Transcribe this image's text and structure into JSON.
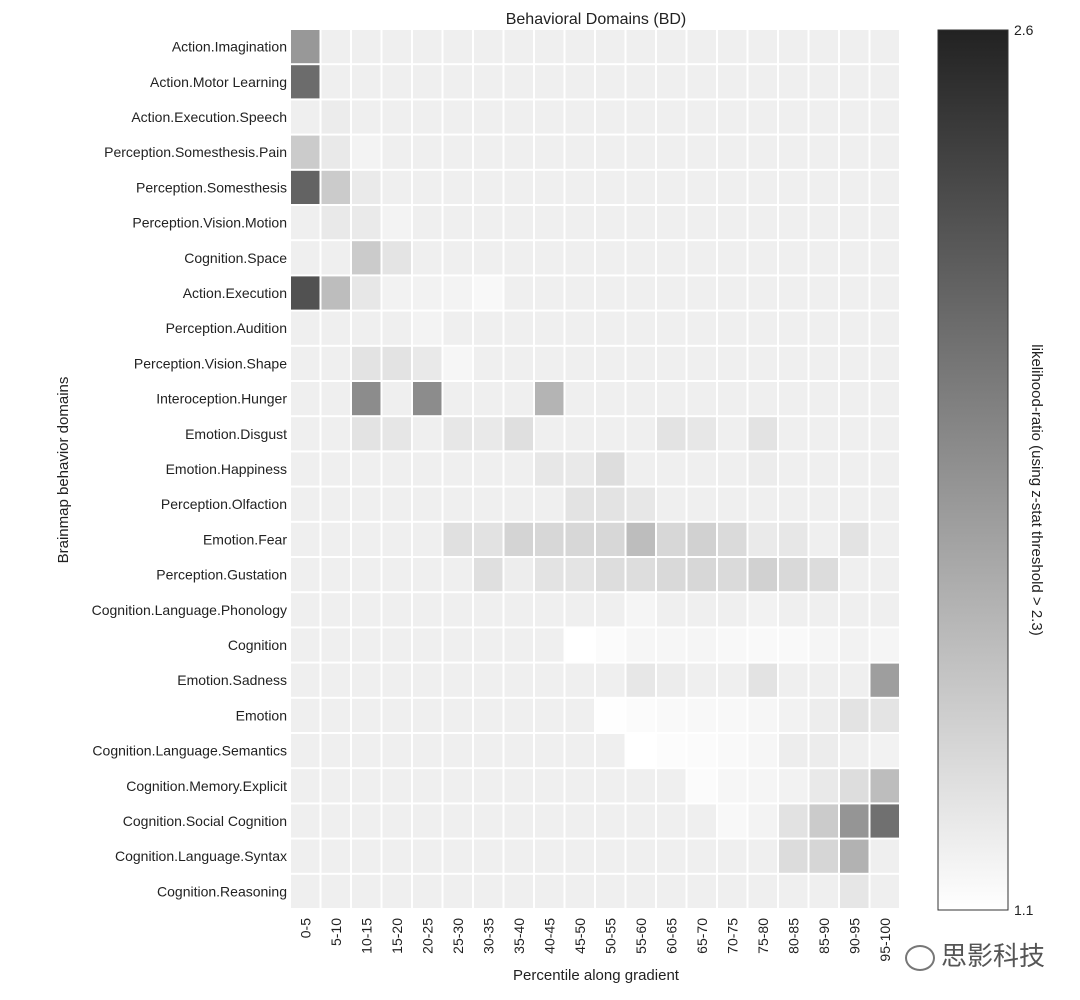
{
  "chart_data": {
    "type": "heatmap",
    "title": "Behavioral Domains (BD)",
    "xlabel": "Percentile along gradient",
    "ylabel": "Brainmap behavior domains",
    "x_categories": [
      "0-5",
      "5-10",
      "10-15",
      "15-20",
      "20-25",
      "25-30",
      "30-35",
      "35-40",
      "40-45",
      "45-50",
      "50-55",
      "55-60",
      "60-65",
      "65-70",
      "70-75",
      "75-80",
      "80-85",
      "85-90",
      "90-95",
      "95-100"
    ],
    "y_categories": [
      "Action.Imagination",
      "Action.Motor Learning",
      "Action.Execution.Speech",
      "Perception.Somesthesis.Pain",
      "Perception.Somesthesis",
      "Perception.Vision.Motion",
      "Cognition.Space",
      "Action.Execution",
      "Perception.Audition",
      "Perception.Vision.Shape",
      "Interoception.Hunger",
      "Emotion.Disgust",
      "Emotion.Happiness",
      "Perception.Olfaction",
      "Emotion.Fear",
      "Perception.Gustation",
      "Cognition.Language.Phonology",
      "Cognition",
      "Emotion.Sadness",
      "Emotion",
      "Cognition.Language.Semantics",
      "Cognition.Memory.Explicit",
      "Cognition.Social Cognition",
      "Cognition.Language.Syntax",
      "Cognition.Reasoning"
    ],
    "baseline_value": 1.21,
    "values": [
      [
        1.8,
        1.21,
        1.21,
        1.21,
        1.21,
        1.21,
        1.21,
        1.21,
        1.21,
        1.21,
        1.21,
        1.21,
        1.21,
        1.21,
        1.21,
        1.21,
        1.21,
        1.21,
        1.21,
        1.21
      ],
      [
        2.1,
        1.21,
        1.21,
        1.21,
        1.21,
        1.21,
        1.21,
        1.21,
        1.21,
        1.21,
        1.21,
        1.21,
        1.21,
        1.21,
        1.21,
        1.21,
        1.21,
        1.21,
        1.21,
        1.21
      ],
      [
        1.21,
        1.23,
        1.21,
        1.21,
        1.21,
        1.21,
        1.21,
        1.21,
        1.21,
        1.21,
        1.21,
        1.21,
        1.21,
        1.21,
        1.21,
        1.21,
        1.21,
        1.21,
        1.21,
        1.21
      ],
      [
        1.45,
        1.25,
        1.18,
        1.21,
        1.21,
        1.21,
        1.21,
        1.21,
        1.21,
        1.21,
        1.21,
        1.21,
        1.21,
        1.21,
        1.21,
        1.21,
        1.21,
        1.21,
        1.21,
        1.21
      ],
      [
        2.16,
        1.45,
        1.24,
        1.21,
        1.21,
        1.21,
        1.21,
        1.21,
        1.21,
        1.21,
        1.21,
        1.21,
        1.21,
        1.21,
        1.21,
        1.21,
        1.21,
        1.21,
        1.21,
        1.21
      ],
      [
        1.21,
        1.25,
        1.24,
        1.18,
        1.21,
        1.21,
        1.21,
        1.21,
        1.21,
        1.21,
        1.21,
        1.21,
        1.21,
        1.21,
        1.21,
        1.21,
        1.21,
        1.21,
        1.21,
        1.21
      ],
      [
        1.21,
        1.21,
        1.45,
        1.28,
        1.21,
        1.21,
        1.21,
        1.21,
        1.21,
        1.21,
        1.21,
        1.21,
        1.21,
        1.21,
        1.21,
        1.21,
        1.21,
        1.21,
        1.21,
        1.21
      ],
      [
        2.28,
        1.55,
        1.26,
        1.19,
        1.19,
        1.18,
        1.15,
        1.21,
        1.21,
        1.21,
        1.21,
        1.21,
        1.21,
        1.21,
        1.21,
        1.21,
        1.21,
        1.21,
        1.21,
        1.21
      ],
      [
        1.21,
        1.21,
        1.21,
        1.21,
        1.18,
        1.21,
        1.21,
        1.21,
        1.21,
        1.21,
        1.21,
        1.21,
        1.21,
        1.21,
        1.21,
        1.21,
        1.21,
        1.21,
        1.21,
        1.21
      ],
      [
        1.21,
        1.21,
        1.29,
        1.29,
        1.25,
        1.16,
        1.21,
        1.21,
        1.21,
        1.21,
        1.21,
        1.21,
        1.21,
        1.21,
        1.21,
        1.21,
        1.21,
        1.21,
        1.21,
        1.21
      ],
      [
        1.21,
        1.21,
        1.88,
        1.21,
        1.88,
        1.21,
        1.21,
        1.21,
        1.61,
        1.21,
        1.21,
        1.21,
        1.21,
        1.21,
        1.21,
        1.21,
        1.21,
        1.21,
        1.21,
        1.21
      ],
      [
        1.21,
        1.21,
        1.29,
        1.27,
        1.21,
        1.26,
        1.25,
        1.32,
        1.21,
        1.21,
        1.21,
        1.21,
        1.29,
        1.26,
        1.21,
        1.29,
        1.21,
        1.21,
        1.21,
        1.21
      ],
      [
        1.21,
        1.21,
        1.21,
        1.21,
        1.21,
        1.21,
        1.21,
        1.21,
        1.26,
        1.25,
        1.33,
        1.21,
        1.21,
        1.21,
        1.21,
        1.23,
        1.21,
        1.21,
        1.21,
        1.21
      ],
      [
        1.21,
        1.21,
        1.21,
        1.21,
        1.21,
        1.21,
        1.21,
        1.21,
        1.21,
        1.29,
        1.29,
        1.26,
        1.21,
        1.21,
        1.21,
        1.21,
        1.21,
        1.21,
        1.21,
        1.21
      ],
      [
        1.21,
        1.21,
        1.21,
        1.21,
        1.21,
        1.31,
        1.3,
        1.39,
        1.37,
        1.37,
        1.37,
        1.55,
        1.37,
        1.41,
        1.35,
        1.24,
        1.26,
        1.21,
        1.29,
        1.21
      ],
      [
        1.21,
        1.21,
        1.21,
        1.21,
        1.21,
        1.21,
        1.32,
        1.22,
        1.29,
        1.28,
        1.33,
        1.33,
        1.36,
        1.37,
        1.35,
        1.41,
        1.36,
        1.34,
        1.21,
        1.21
      ],
      [
        1.21,
        1.21,
        1.21,
        1.21,
        1.21,
        1.21,
        1.21,
        1.21,
        1.21,
        1.21,
        1.21,
        1.17,
        1.21,
        1.21,
        1.21,
        1.19,
        1.21,
        1.21,
        1.21,
        1.21
      ],
      [
        1.21,
        1.21,
        1.21,
        1.21,
        1.21,
        1.21,
        1.21,
        1.21,
        1.21,
        1.1,
        1.13,
        1.16,
        1.16,
        1.17,
        1.15,
        1.14,
        1.14,
        1.17,
        1.19,
        1.17
      ],
      [
        1.21,
        1.21,
        1.21,
        1.21,
        1.21,
        1.21,
        1.21,
        1.21,
        1.21,
        1.21,
        1.21,
        1.26,
        1.23,
        1.21,
        1.21,
        1.29,
        1.21,
        1.21,
        1.21,
        1.76
      ],
      [
        1.21,
        1.21,
        1.21,
        1.21,
        1.21,
        1.21,
        1.21,
        1.21,
        1.21,
        1.21,
        1.11,
        1.13,
        1.14,
        1.15,
        1.15,
        1.16,
        1.19,
        1.22,
        1.29,
        1.28
      ],
      [
        1.21,
        1.21,
        1.21,
        1.21,
        1.21,
        1.21,
        1.21,
        1.21,
        1.21,
        1.21,
        1.21,
        1.1,
        1.12,
        1.13,
        1.14,
        1.16,
        1.22,
        1.23,
        1.21,
        1.19
      ],
      [
        1.21,
        1.21,
        1.21,
        1.21,
        1.21,
        1.21,
        1.21,
        1.21,
        1.21,
        1.21,
        1.21,
        1.21,
        1.21,
        1.13,
        1.16,
        1.17,
        1.19,
        1.25,
        1.33,
        1.55
      ],
      [
        1.21,
        1.21,
        1.21,
        1.21,
        1.21,
        1.21,
        1.21,
        1.21,
        1.21,
        1.21,
        1.21,
        1.21,
        1.21,
        1.21,
        1.15,
        1.18,
        1.3,
        1.45,
        1.82,
        2.07
      ],
      [
        1.21,
        1.21,
        1.21,
        1.21,
        1.21,
        1.21,
        1.21,
        1.21,
        1.21,
        1.21,
        1.21,
        1.21,
        1.21,
        1.21,
        1.21,
        1.21,
        1.34,
        1.38,
        1.62,
        1.21
      ],
      [
        1.21,
        1.21,
        1.21,
        1.21,
        1.21,
        1.21,
        1.21,
        1.21,
        1.21,
        1.21,
        1.21,
        1.21,
        1.21,
        1.21,
        1.21,
        1.21,
        1.21,
        1.21,
        1.27,
        1.21
      ]
    ],
    "colorbar": {
      "label": "likelihood-ratio (using z-stat threshold > 2.3)",
      "range": [
        1.1,
        2.6
      ],
      "ticks": [
        "2.6",
        "1.1"
      ],
      "colormap": "greys",
      "low_color": "#ffffff",
      "high_color": "#222222"
    },
    "grid": false,
    "legend": "colorbar-right"
  },
  "watermark": {
    "text": "思影科技"
  }
}
